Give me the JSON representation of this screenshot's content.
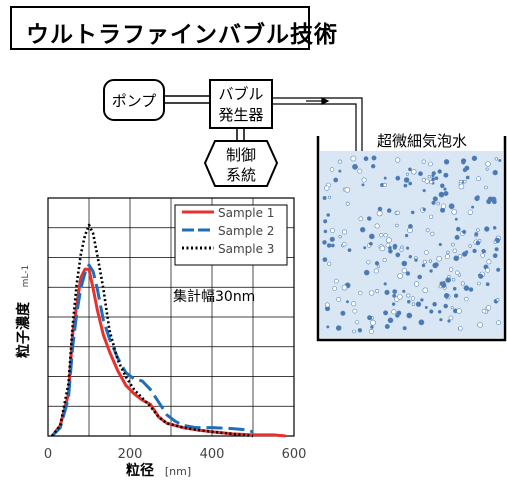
{
  "title": "ウルトラファインバブル技術",
  "diagram": {
    "pump_label": "ポンプ",
    "generator_label_line1": "バブル",
    "generator_label_line2": "発生器",
    "control_label_line1": "制御",
    "control_label_line2": "系統",
    "water_label": "超微細気泡水"
  },
  "chart_data": {
    "type": "line",
    "xlabel": "粒径",
    "xunit": "[nm]",
    "ylabel": "粒子濃度",
    "yunit": "mL-1",
    "annotation": "集計幅30nm",
    "xlim": [
      0,
      600
    ],
    "xticks": [
      "0",
      "200",
      "400",
      "600"
    ],
    "grid": true,
    "legend_position": "top-right",
    "series": [
      {
        "name": "Sample 1",
        "color": "#e8302c",
        "style": "solid",
        "points": [
          [
            10,
            0
          ],
          [
            30,
            0.05
          ],
          [
            50,
            0.2
          ],
          [
            60,
            0.48
          ],
          [
            70,
            0.62
          ],
          [
            80,
            0.75
          ],
          [
            90,
            0.79
          ],
          [
            100,
            0.79
          ],
          [
            110,
            0.7
          ],
          [
            120,
            0.6
          ],
          [
            135,
            0.48
          ],
          [
            150,
            0.4
          ],
          [
            170,
            0.31
          ],
          [
            190,
            0.24
          ],
          [
            210,
            0.2
          ],
          [
            230,
            0.17
          ],
          [
            250,
            0.15
          ],
          [
            270,
            0.09
          ],
          [
            290,
            0.06
          ],
          [
            310,
            0.05
          ],
          [
            330,
            0.04
          ],
          [
            360,
            0.03
          ],
          [
            400,
            0.02
          ],
          [
            450,
            0.01
          ],
          [
            500,
            0.005
          ],
          [
            550,
            0.005
          ],
          [
            580,
            0.0
          ]
        ]
      },
      {
        "name": "Sample 2",
        "color": "#1f6fb8",
        "style": "dashed",
        "points": [
          [
            10,
            0
          ],
          [
            30,
            0.04
          ],
          [
            50,
            0.18
          ],
          [
            60,
            0.42
          ],
          [
            70,
            0.58
          ],
          [
            80,
            0.7
          ],
          [
            90,
            0.77
          ],
          [
            100,
            0.81
          ],
          [
            110,
            0.78
          ],
          [
            120,
            0.7
          ],
          [
            135,
            0.55
          ],
          [
            150,
            0.46
          ],
          [
            170,
            0.37
          ],
          [
            190,
            0.3
          ],
          [
            210,
            0.27
          ],
          [
            230,
            0.26
          ],
          [
            250,
            0.22
          ],
          [
            270,
            0.16
          ],
          [
            290,
            0.1
          ],
          [
            310,
            0.07
          ],
          [
            330,
            0.05
          ],
          [
            360,
            0.04
          ],
          [
            400,
            0.04
          ],
          [
            450,
            0.035
          ],
          [
            480,
            0.03
          ],
          [
            500,
            0.02
          ]
        ]
      },
      {
        "name": "Sample 3",
        "color": "#000000",
        "style": "dotted",
        "points": [
          [
            10,
            0
          ],
          [
            30,
            0.05
          ],
          [
            50,
            0.25
          ],
          [
            60,
            0.52
          ],
          [
            70,
            0.72
          ],
          [
            80,
            0.86
          ],
          [
            90,
            0.95
          ],
          [
            100,
            1.0
          ],
          [
            110,
            0.96
          ],
          [
            120,
            0.86
          ],
          [
            135,
            0.7
          ],
          [
            150,
            0.5
          ],
          [
            170,
            0.36
          ],
          [
            190,
            0.28
          ],
          [
            210,
            0.22
          ],
          [
            230,
            0.18
          ],
          [
            250,
            0.14
          ],
          [
            270,
            0.09
          ],
          [
            290,
            0.06
          ],
          [
            310,
            0.05
          ],
          [
            330,
            0.04
          ],
          [
            360,
            0.03
          ],
          [
            400,
            0.02
          ],
          [
            450,
            0.01
          ],
          [
            500,
            0.0
          ]
        ]
      }
    ]
  }
}
